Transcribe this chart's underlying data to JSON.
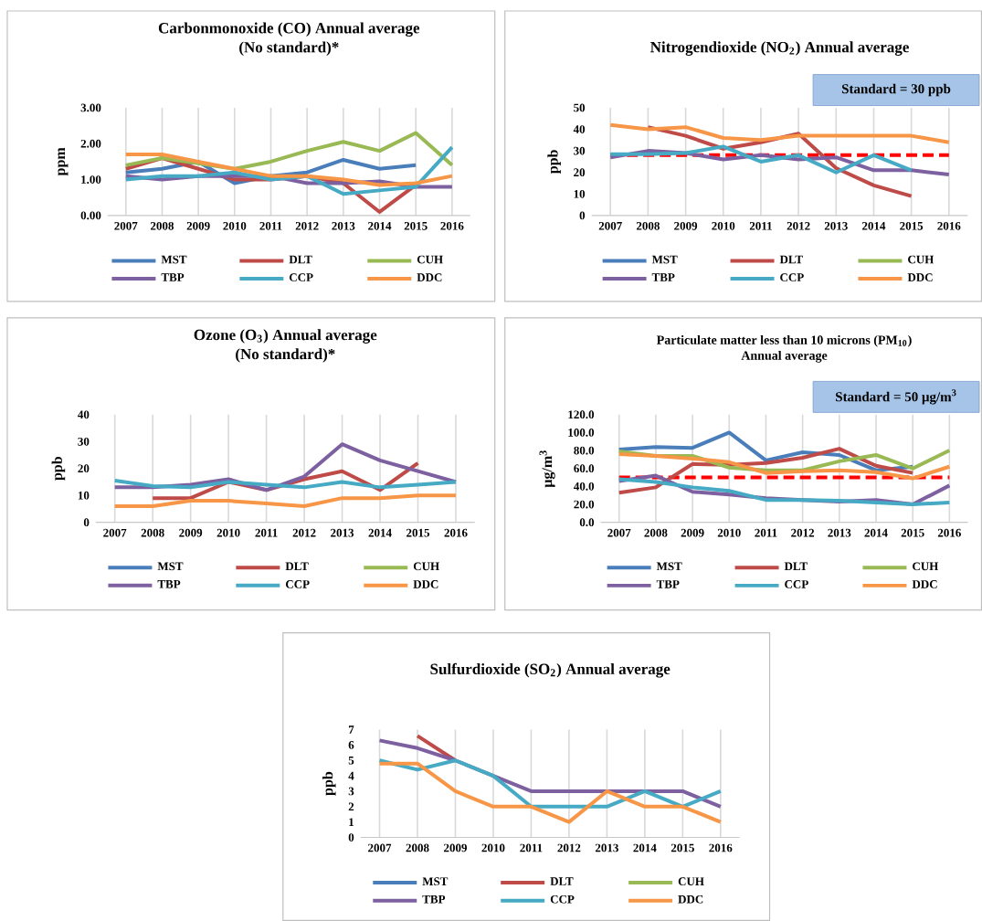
{
  "chart_data": [
    {
      "type": "line",
      "title": "Carbonmonoxide (CO) Annual average",
      "subtitle": "(No standard)*",
      "ylabel": "ppm",
      "categories": [
        "2007",
        "2008",
        "2009",
        "2010",
        "2011",
        "2012",
        "2013",
        "2014",
        "2015",
        "2016"
      ],
      "ylim": [
        0,
        3
      ],
      "yticks": [
        {
          "value": 0,
          "label": "0.00"
        },
        {
          "value": 1,
          "label": "1.00"
        },
        {
          "value": 2,
          "label": "2.00"
        },
        {
          "value": 3,
          "label": "3.00"
        }
      ],
      "grid": "x",
      "legend": "bottom",
      "series": [
        {
          "name": "MST",
          "color": "#4a7ebb",
          "values": [
            1.2,
            1.3,
            1.5,
            0.9,
            1.1,
            1.2,
            1.55,
            1.3,
            1.4,
            null
          ]
        },
        {
          "name": "DLT",
          "color": "#be4b48",
          "values": [
            1.3,
            1.6,
            1.3,
            1.0,
            1.0,
            1.1,
            0.9,
            0.1,
            0.85,
            null
          ]
        },
        {
          "name": "CUH",
          "color": "#98b954",
          "values": [
            1.4,
            1.6,
            1.45,
            1.3,
            1.5,
            1.8,
            2.05,
            1.8,
            2.3,
            1.4
          ]
        },
        {
          "name": "TBP",
          "color": "#7d60a0",
          "values": [
            1.1,
            1.0,
            1.1,
            1.1,
            1.1,
            0.9,
            0.9,
            0.95,
            0.8,
            0.8
          ]
        },
        {
          "name": "CCP",
          "color": "#46aac5",
          "values": [
            1.0,
            1.1,
            1.1,
            1.2,
            1.0,
            1.1,
            0.6,
            0.7,
            0.8,
            1.9
          ]
        },
        {
          "name": "DDC",
          "color": "#f79646",
          "values": [
            1.7,
            1.7,
            1.5,
            1.3,
            1.1,
            1.1,
            1.0,
            0.85,
            0.9,
            1.1
          ]
        }
      ]
    },
    {
      "type": "line",
      "title": "Nitrogendioxide (NO$_{2}$) Annual average",
      "ylabel": "ppb",
      "categories": [
        "2007",
        "2008",
        "2009",
        "2010",
        "2011",
        "2012",
        "2013",
        "2014",
        "2015",
        "2016"
      ],
      "ylim": [
        0,
        50
      ],
      "yticks": [
        0,
        10,
        20,
        30,
        40,
        50
      ],
      "grid": "x",
      "legend": "bottom",
      "annotations": [
        "Standard = 30 ppb"
      ],
      "ref_lines": [
        {
          "axis": "y",
          "value": 28,
          "color": "#ff0000",
          "line_style": "dashed"
        }
      ],
      "series": [
        {
          "name": "MST",
          "color": "#4a7ebb",
          "values": [
            null,
            null,
            null,
            null,
            null,
            null,
            null,
            null,
            null,
            null
          ]
        },
        {
          "name": "DLT",
          "color": "#be4b48",
          "values": [
            null,
            41,
            37,
            31,
            34,
            38,
            22,
            14,
            9,
            null
          ]
        },
        {
          "name": "CUH",
          "color": "#98b954",
          "values": [
            null,
            null,
            null,
            null,
            null,
            null,
            null,
            null,
            null,
            null
          ]
        },
        {
          "name": "TBP",
          "color": "#7d60a0",
          "values": [
            27,
            30,
            29,
            26,
            28,
            26,
            27,
            21,
            21,
            19
          ]
        },
        {
          "name": "CCP",
          "color": "#46aac5",
          "values": [
            28.5,
            28.5,
            29,
            32,
            25,
            28,
            20,
            28,
            21,
            null
          ]
        },
        {
          "name": "DDC",
          "color": "#f79646",
          "values": [
            42,
            40,
            41,
            36,
            35,
            37,
            37,
            37,
            37,
            34
          ]
        }
      ]
    },
    {
      "type": "line",
      "title": "Ozone (O$_{3}$) Annual average",
      "subtitle": "(No standard)*",
      "ylabel": "ppb",
      "categories": [
        "2007",
        "2008",
        "2009",
        "2010",
        "2011",
        "2012",
        "2013",
        "2014",
        "2015",
        "2016"
      ],
      "ylim": [
        0,
        40
      ],
      "yticks": [
        0,
        10,
        20,
        30,
        40
      ],
      "grid": "x",
      "legend": "bottom",
      "series": [
        {
          "name": "MST",
          "color": "#4a7ebb",
          "values": [
            null,
            null,
            null,
            null,
            null,
            null,
            null,
            null,
            null,
            null
          ]
        },
        {
          "name": "DLT",
          "color": "#be4b48",
          "values": [
            null,
            9,
            9,
            15,
            12,
            16,
            19,
            12,
            22,
            null
          ]
        },
        {
          "name": "CUH",
          "color": "#98b954",
          "values": [
            null,
            null,
            null,
            null,
            null,
            null,
            null,
            null,
            null,
            null
          ]
        },
        {
          "name": "TBP",
          "color": "#7d60a0",
          "values": [
            13,
            13,
            14,
            16,
            12,
            17,
            29,
            23,
            19,
            15
          ]
        },
        {
          "name": "CCP",
          "color": "#46aac5",
          "values": [
            15.5,
            13.5,
            13,
            15,
            14,
            13,
            15,
            13,
            14,
            15
          ]
        },
        {
          "name": "DDC",
          "color": "#f79646",
          "values": [
            6,
            6,
            8,
            8,
            7,
            6,
            9,
            9,
            10,
            10
          ]
        }
      ]
    },
    {
      "type": "line",
      "title": "Particulate matter less than 10 microns (PM$_{10}$)",
      "subtitle": "Annual average",
      "ylabel": "μg/m$^{3}$",
      "categories": [
        "2007",
        "2008",
        "2009",
        "2010",
        "2011",
        "2012",
        "2013",
        "2014",
        "2015",
        "2016"
      ],
      "ylim": [
        0,
        120
      ],
      "yticks": [
        {
          "value": 0,
          "label": "0.0"
        },
        {
          "value": 20,
          "label": "20.0"
        },
        {
          "value": 40,
          "label": "40.0"
        },
        {
          "value": 60,
          "label": "60.0"
        },
        {
          "value": 80,
          "label": "80.0"
        },
        {
          "value": 100,
          "label": "100.0"
        },
        {
          "value": 120,
          "label": "120.0"
        }
      ],
      "grid": "x",
      "legend": "bottom",
      "annotations": [
        "Standard = 50 μg/m$^{3}$"
      ],
      "ref_lines": [
        {
          "axis": "y",
          "value": 50,
          "color": "#ff0000",
          "line_style": "dashed"
        }
      ],
      "series": [
        {
          "name": "MST",
          "color": "#4a7ebb",
          "values": [
            81,
            84,
            83,
            100,
            69,
            78,
            75,
            58,
            62,
            null
          ]
        },
        {
          "name": "DLT",
          "color": "#be4b48",
          "values": [
            33,
            39,
            65,
            64,
            66,
            72,
            82,
            63,
            55,
            null
          ]
        },
        {
          "name": "CUH",
          "color": "#98b954",
          "values": [
            79,
            74,
            74,
            61,
            58,
            58,
            68,
            75,
            60,
            80
          ]
        },
        {
          "name": "TBP",
          "color": "#7d60a0",
          "values": [
            46,
            52,
            34,
            31,
            27,
            25,
            23,
            25,
            20,
            41
          ]
        },
        {
          "name": "CCP",
          "color": "#46aac5",
          "values": [
            48,
            45,
            39,
            35,
            25,
            25,
            24,
            22,
            20,
            22
          ]
        },
        {
          "name": "DDC",
          "color": "#f79646",
          "values": [
            76,
            74,
            71,
            67,
            55,
            57,
            58,
            56,
            49,
            62
          ]
        }
      ]
    },
    {
      "type": "line",
      "title": "Sulfurdioxide (SO$_{2}$) Annual average",
      "ylabel": "ppb",
      "categories": [
        "2007",
        "2008",
        "2009",
        "2010",
        "2011",
        "2012",
        "2013",
        "2014",
        "2015",
        "2016"
      ],
      "ylim": [
        0,
        7
      ],
      "yticks": [
        0,
        1,
        2,
        3,
        4,
        5,
        6,
        7
      ],
      "grid": "x",
      "legend": "bottom",
      "series": [
        {
          "name": "MST",
          "color": "#4a7ebb",
          "values": [
            null,
            null,
            null,
            null,
            null,
            null,
            null,
            null,
            null,
            null
          ]
        },
        {
          "name": "DLT",
          "color": "#be4b48",
          "values": [
            null,
            6.6,
            5,
            null,
            null,
            null,
            null,
            null,
            null,
            null
          ]
        },
        {
          "name": "CUH",
          "color": "#98b954",
          "values": [
            null,
            null,
            null,
            null,
            null,
            null,
            null,
            null,
            null,
            null
          ]
        },
        {
          "name": "TBP",
          "color": "#7d60a0",
          "values": [
            6.3,
            5.8,
            5,
            4,
            3,
            3,
            3,
            3,
            3,
            2
          ]
        },
        {
          "name": "CCP",
          "color": "#46aac5",
          "values": [
            5,
            4.4,
            5,
            4,
            2,
            2,
            2,
            3,
            2,
            3
          ]
        },
        {
          "name": "DDC",
          "color": "#f79646",
          "values": [
            4.8,
            4.8,
            3,
            2,
            2,
            1,
            3,
            2,
            2,
            1
          ]
        }
      ]
    }
  ]
}
